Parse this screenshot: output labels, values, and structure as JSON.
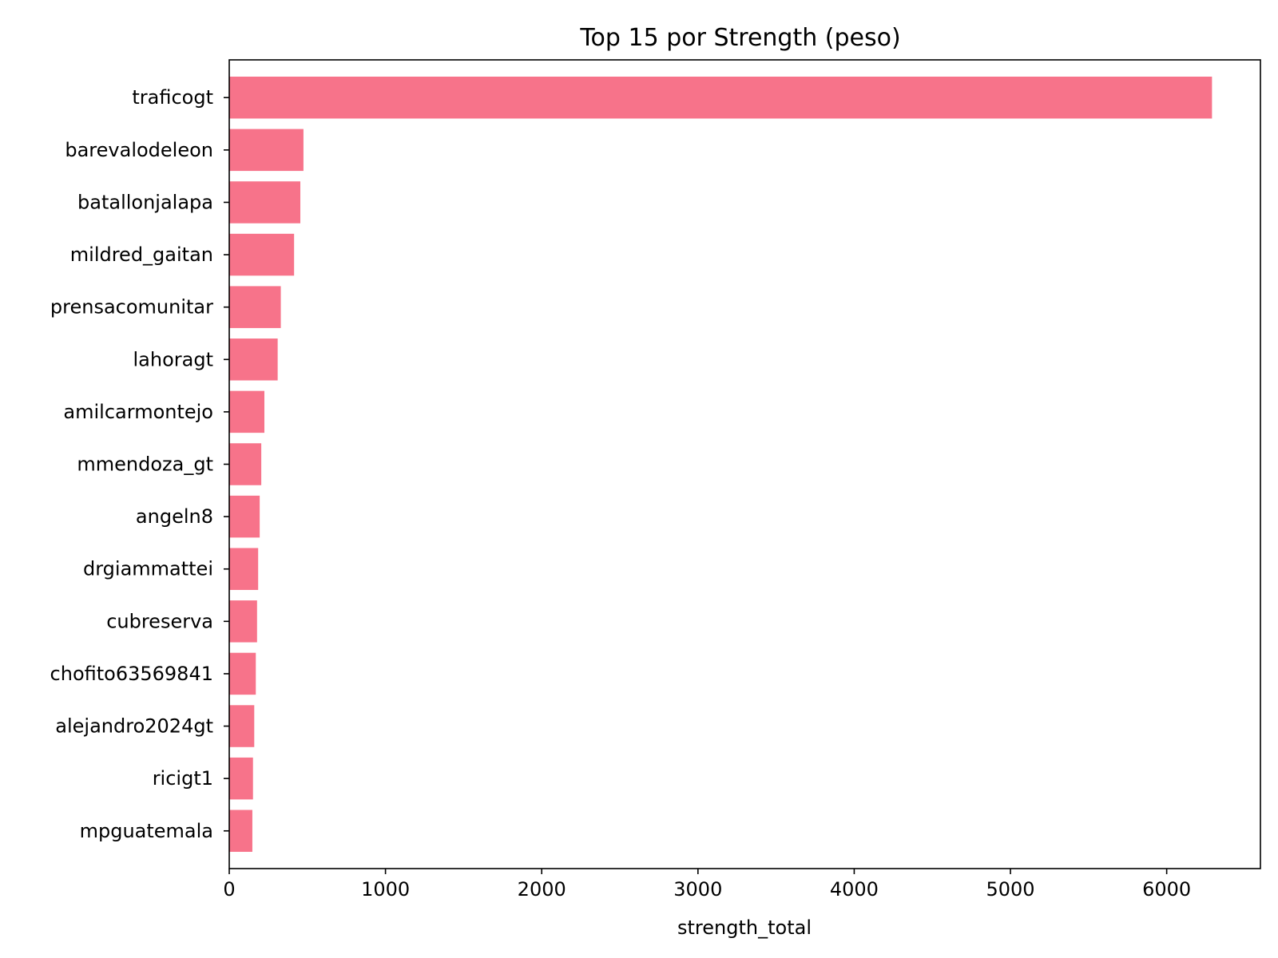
{
  "chart_data": {
    "type": "bar",
    "orientation": "horizontal",
    "title": "Top 15 por Strength (peso)",
    "xlabel": "strength_total",
    "ylabel": "",
    "xlim": [
      0,
      6600
    ],
    "xticks": [
      0,
      1000,
      2000,
      3000,
      4000,
      5000,
      6000
    ],
    "grid": false,
    "bar_color": "#f7738a",
    "categories": [
      "traficogt",
      "barevalodeleon",
      "batallonjalapa",
      "mildred_gaitan",
      "prensacomunitar",
      "lahoragt",
      "amilcarmontejo",
      "mmendoza_gt",
      "angeln8",
      "drgiammattei",
      "cubreserva",
      "chofito63569841",
      "alejandro2024gt",
      "ricigt1",
      "mpguatemala"
    ],
    "values": [
      6290,
      475,
      455,
      415,
      330,
      310,
      225,
      205,
      195,
      185,
      178,
      170,
      160,
      152,
      148
    ]
  }
}
